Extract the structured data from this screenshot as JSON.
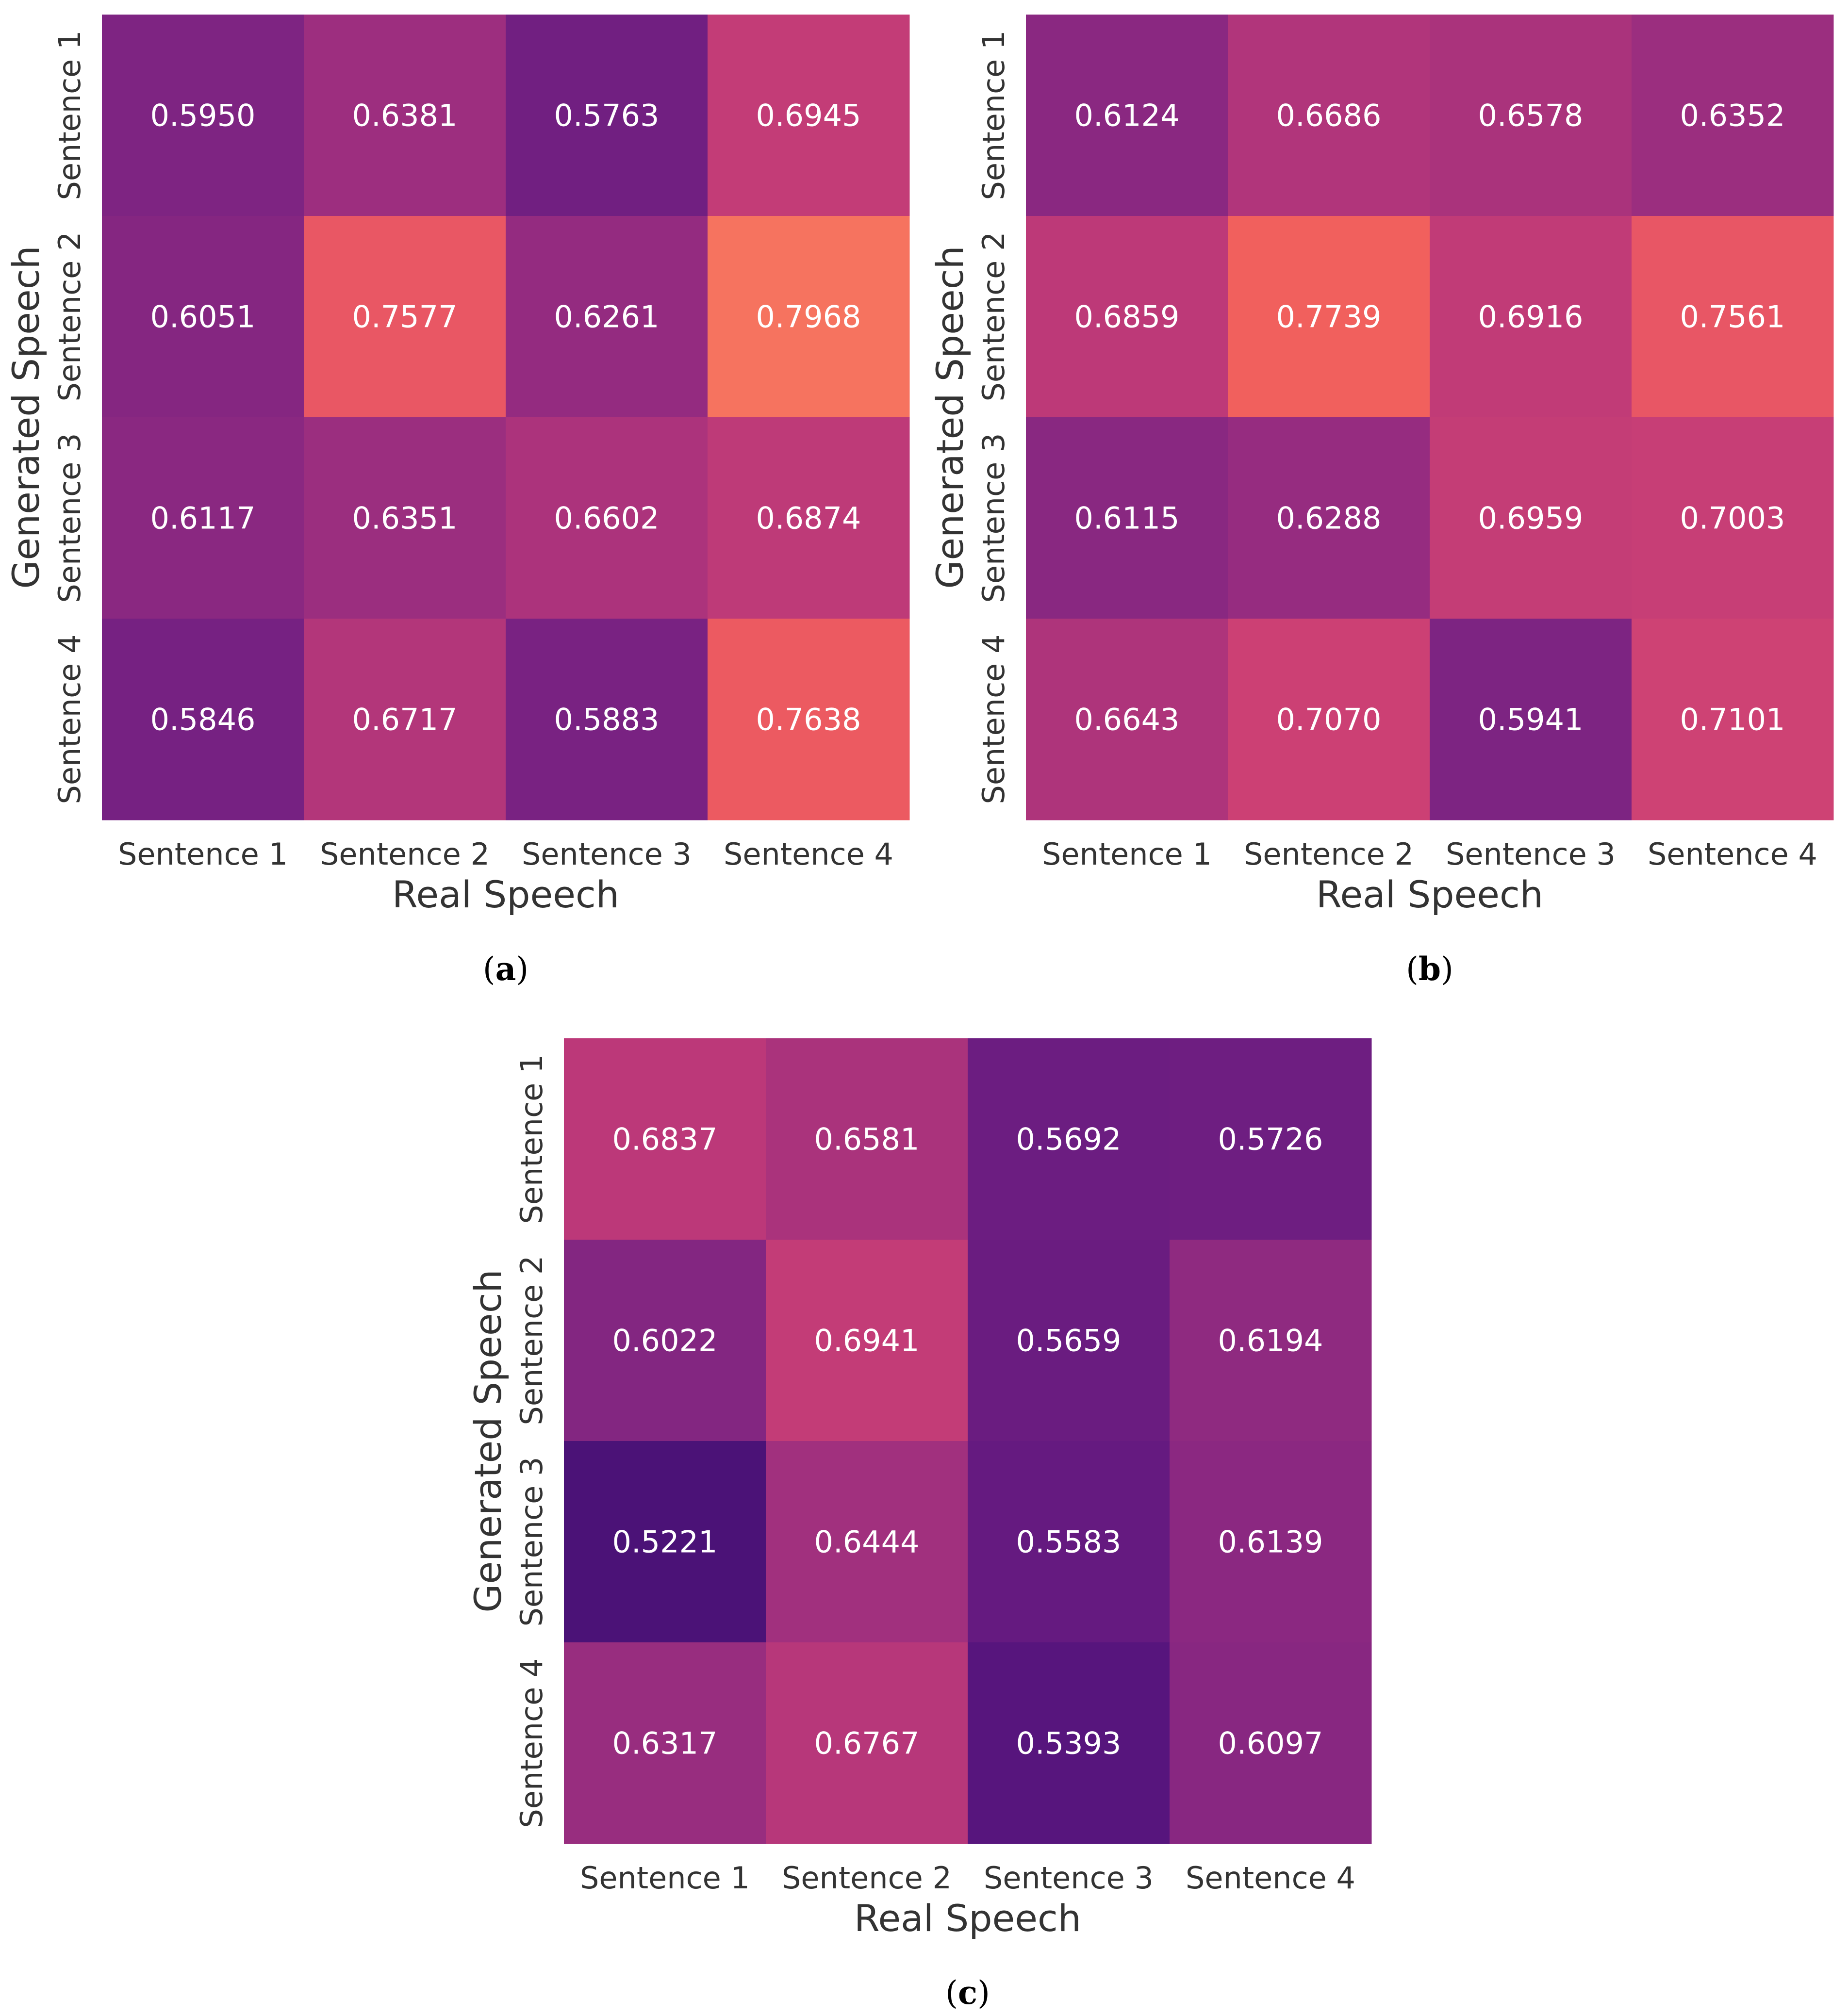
{
  "chart_data": [
    {
      "type": "heatmap",
      "panel": "a",
      "caption": "a",
      "xlabel": "Real Speech",
      "ylabel": "Generated Speech",
      "x_categories": [
        "Sentence 1",
        "Sentence 2",
        "Sentence 3",
        "Sentence 4"
      ],
      "y_categories": [
        "Sentence 1",
        "Sentence 2",
        "Sentence 3",
        "Sentence 4"
      ],
      "values": [
        [
          0.595,
          0.6381,
          0.5763,
          0.6945
        ],
        [
          0.6051,
          0.7577,
          0.6261,
          0.7968
        ],
        [
          0.6117,
          0.6351,
          0.6602,
          0.6874
        ],
        [
          0.5846,
          0.6717,
          0.5883,
          0.7638
        ]
      ],
      "colormap": "magma",
      "color_range": [
        0.5,
        0.82
      ]
    },
    {
      "type": "heatmap",
      "panel": "b",
      "caption": "b",
      "xlabel": "Real Speech",
      "ylabel": "Generated Speech",
      "x_categories": [
        "Sentence 1",
        "Sentence 2",
        "Sentence 3",
        "Sentence 4"
      ],
      "y_categories": [
        "Sentence 1",
        "Sentence 2",
        "Sentence 3",
        "Sentence 4"
      ],
      "values": [
        [
          0.6124,
          0.6686,
          0.6578,
          0.6352
        ],
        [
          0.6859,
          0.7739,
          0.6916,
          0.7561
        ],
        [
          0.6115,
          0.6288,
          0.6959,
          0.7003
        ],
        [
          0.6643,
          0.707,
          0.5941,
          0.7101
        ]
      ],
      "colormap": "magma",
      "color_range": [
        0.5,
        0.82
      ]
    },
    {
      "type": "heatmap",
      "panel": "c",
      "caption": "c",
      "xlabel": "Real Speech",
      "ylabel": "Generated Speech",
      "x_categories": [
        "Sentence 1",
        "Sentence 2",
        "Sentence 3",
        "Sentence 4"
      ],
      "y_categories": [
        "Sentence 1",
        "Sentence 2",
        "Sentence 3",
        "Sentence 4"
      ],
      "values": [
        [
          0.6837,
          0.6581,
          0.5692,
          0.5726
        ],
        [
          0.6022,
          0.6941,
          0.5659,
          0.6194
        ],
        [
          0.5221,
          0.6444,
          0.5583,
          0.6139
        ],
        [
          0.6317,
          0.6767,
          0.5393,
          0.6097
        ]
      ],
      "colormap": "magma",
      "color_range": [
        0.5,
        0.82
      ]
    }
  ],
  "colors": {
    "magma_stops": [
      "#3b0f70",
      "#5c167f",
      "#7b2382",
      "#9c2e7f",
      "#bb3879",
      "#db4870",
      "#f1605d",
      "#fb8761"
    ]
  }
}
